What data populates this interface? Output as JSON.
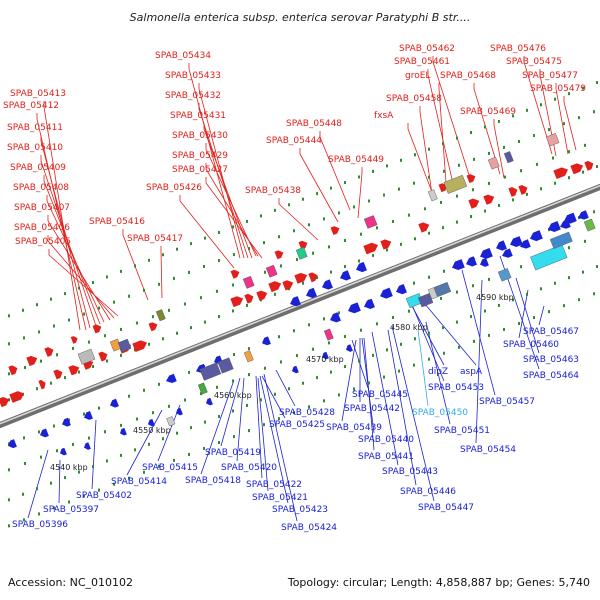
{
  "title": "Salmonella enterica subsp. enterica serovar Paratyphi B str....",
  "footer": {
    "accession": "Accession: NC_010102",
    "topology": "Topology: circular; Length: 4,858,887 bp; Genes: 5,740"
  },
  "colors": {
    "forward_strand": "#e0201b",
    "reverse_strand": "#1b22d4",
    "highlight_label": "#33aaee",
    "backbone": "#888888"
  },
  "kbp_ticks": [
    "4540 kbp",
    "4550 kbp",
    "4560 kbp",
    "4570 kbp",
    "4580 kbp",
    "4590 kbp"
  ],
  "forward_labels": [
    "SPAB_05434",
    "SPAB_05433",
    "SPAB_05432",
    "SPAB_05431",
    "SPAB_05430",
    "SPAB_05429",
    "SPAB_05427",
    "SPAB_05426",
    "SPAB_05413",
    "SPAB_05412",
    "SPAB_05411",
    "SPAB_05410",
    "SPAB_05409",
    "SPAB_05408",
    "SPAB_05407",
    "SPAB_05406",
    "SPAB_05405",
    "SPAB_05416",
    "SPAB_05417",
    "SPAB_05448",
    "SPAB_05444",
    "SPAB_05438",
    "SPAB_05449",
    "SPAB_05462",
    "SPAB_05461",
    "groEL",
    "SPAB_05458",
    "fxsA",
    "SPAB_05468",
    "SPAB_05469",
    "SPAB_05476",
    "SPAB_05475",
    "SPAB_05477",
    "SPAB_05479"
  ],
  "reverse_labels": [
    "SPAB_05467",
    "SPAB_05460",
    "SPAB_05463",
    "SPAB_05464",
    "dipZ",
    "aspA",
    "SPAB_05453",
    "SPAB_05457",
    "SPAB_05445",
    "SPAB_05442",
    "SPAB_05450",
    "SPAB_05439",
    "SPAB_05451",
    "SPAB_05440",
    "SPAB_05454",
    "SPAB_05441",
    "SPAB_05443",
    "SPAB_05446",
    "SPAB_05447",
    "SPAB_05428",
    "SPAB_05425",
    "SPAB_05419",
    "SPAB_05420",
    "SPAB_05418",
    "SPAB_05422",
    "SPAB_05421",
    "SPAB_05423",
    "SPAB_05424",
    "SPAB_05415",
    "SPAB_05414",
    "SPAB_05402",
    "SPAB_05397",
    "SPAB_05396"
  ]
}
